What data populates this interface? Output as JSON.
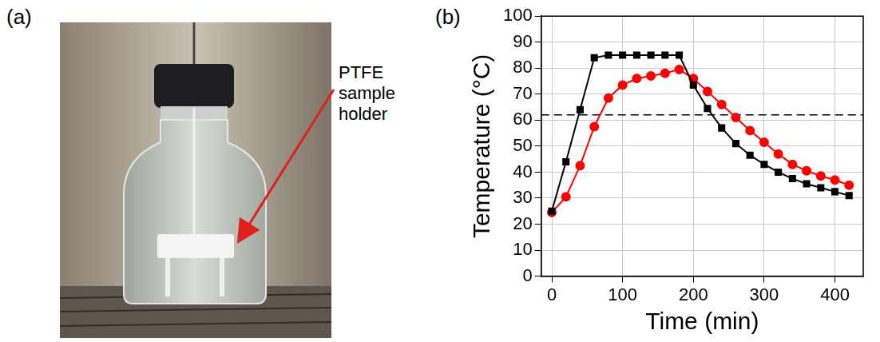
{
  "panel_labels": [
    "(a)",
    "(b)"
  ],
  "photo": {
    "annotation": "PTFE sample holder"
  },
  "chart_data": {
    "type": "line",
    "x_label": "Time (min)",
    "y_label": "Temperature (°C)",
    "x": [
      0,
      20,
      40,
      60,
      80,
      100,
      120,
      140,
      160,
      180,
      200,
      220,
      240,
      260,
      280,
      300,
      320,
      340,
      360,
      380,
      400,
      420
    ],
    "series": [
      {
        "color": "#000000",
        "marker": "square",
        "values": [
          25,
          44,
          64,
          84,
          85,
          85,
          85,
          85,
          85,
          85,
          73.5,
          64.5,
          57,
          51,
          46.5,
          43,
          40,
          37.5,
          35.5,
          34,
          32.5,
          31
        ]
      },
      {
        "color": "#ff0000",
        "marker": "circle",
        "values": [
          24.5,
          30.5,
          42.5,
          57.5,
          68.5,
          73.5,
          76,
          77,
          78,
          79.5,
          76,
          71,
          66,
          61,
          56,
          51.5,
          47,
          43,
          40.5,
          38.5,
          37,
          35
        ]
      }
    ],
    "xlim": [
      -15,
      440
    ],
    "xticks": [
      0,
      100,
      200,
      300,
      400
    ],
    "ylim": [
      0,
      100
    ],
    "yticks": [
      0,
      10,
      20,
      30,
      40,
      50,
      60,
      70,
      80,
      90,
      100
    ],
    "grid": true,
    "reference_line": {
      "value": 62,
      "color": "#000000",
      "line_style": "dashed"
    }
  }
}
